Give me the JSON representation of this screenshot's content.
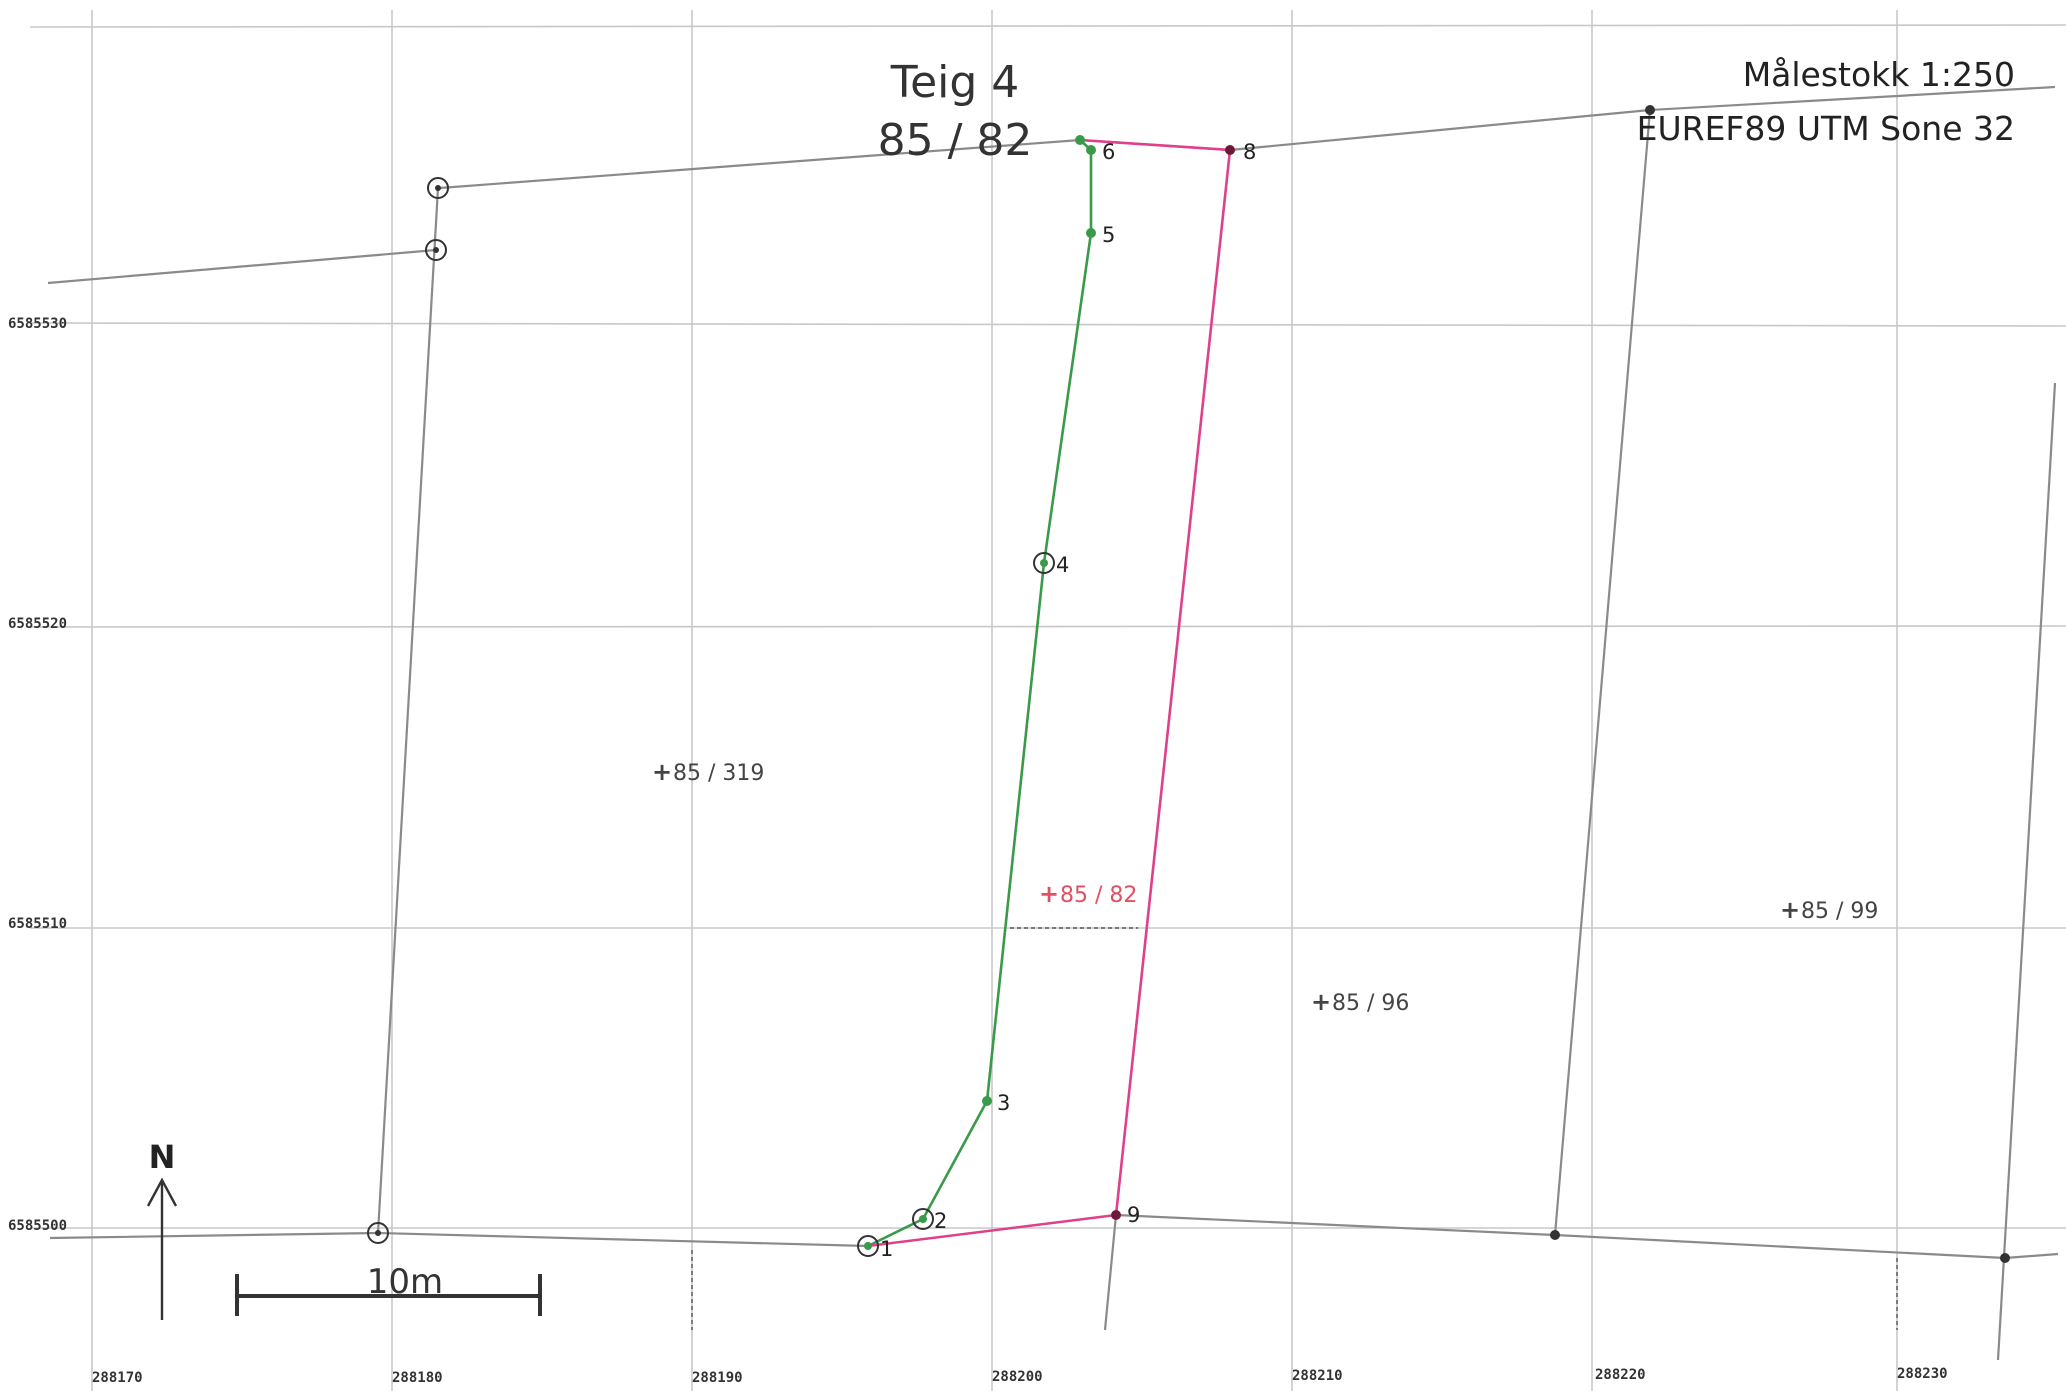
{
  "map_title": {
    "line1": "Teig 4",
    "line2": "85 / 82"
  },
  "scale_text": "Målestokk 1:250",
  "crs_text": "EUREF89 UTM Sone 32",
  "scale_bar_label": "10m",
  "north_label": "N",
  "grid": {
    "easting_labels": [
      "288170",
      "288180",
      "288190",
      "288200",
      "288210",
      "288220",
      "288230"
    ],
    "northing_labels": [
      "6585530",
      "6585520",
      "6585510",
      "6585500"
    ]
  },
  "points": [
    {
      "id": "1",
      "label": "1"
    },
    {
      "id": "2",
      "label": "2"
    },
    {
      "id": "3",
      "label": "3"
    },
    {
      "id": "4",
      "label": "4"
    },
    {
      "id": "5",
      "label": "5"
    },
    {
      "id": "6",
      "label": "6"
    },
    {
      "id": "8",
      "label": "8"
    },
    {
      "id": "9",
      "label": "9"
    }
  ],
  "parcels": [
    {
      "label": "85 / 319",
      "highlight": false
    },
    {
      "label": "85 / 82",
      "highlight": true
    },
    {
      "label": "85 / 96",
      "highlight": false
    },
    {
      "label": "85 / 99",
      "highlight": false
    }
  ],
  "colors": {
    "green_boundary": "#3a9a4a",
    "pink_boundary": "#e0408a",
    "highlight_label": "#e05060",
    "boundary_grey": "#8a8a8a"
  }
}
